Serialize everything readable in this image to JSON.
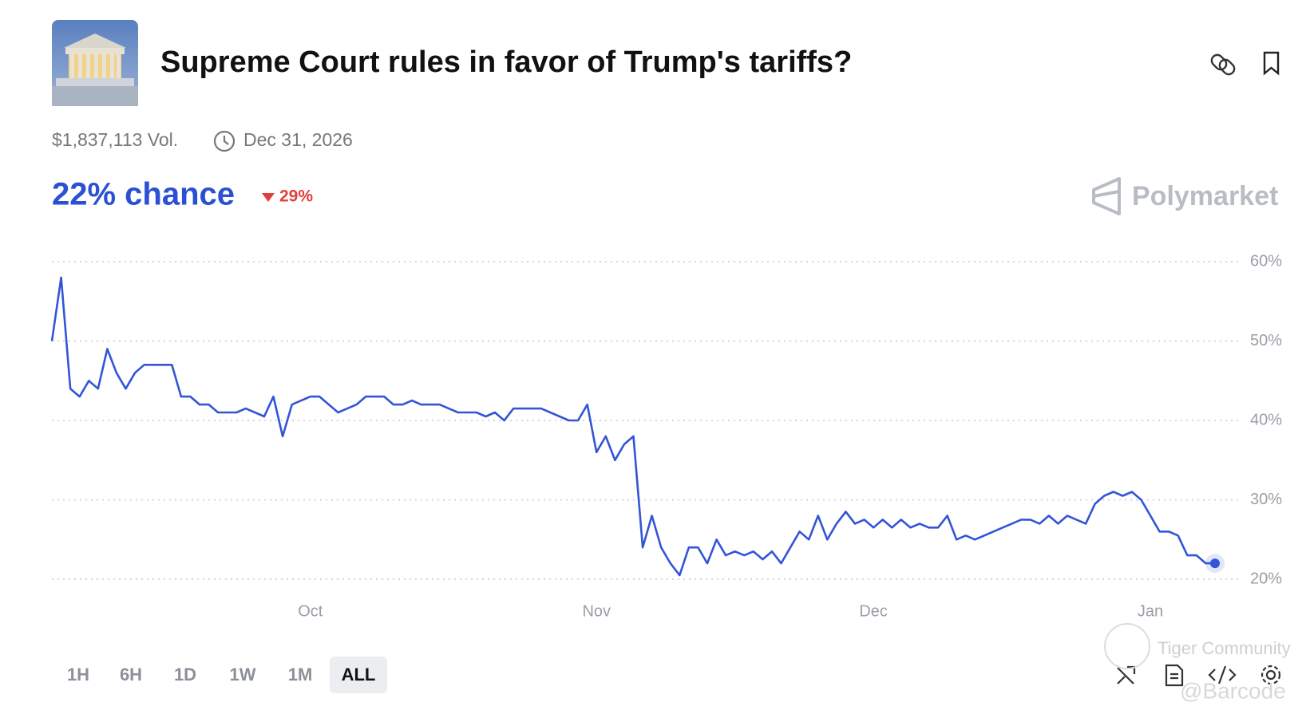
{
  "header": {
    "title": "Supreme Court rules in favor of Trump's tariffs?",
    "volume": "$1,837,113 Vol.",
    "end_date": "Dec 31, 2026"
  },
  "chance": {
    "label": "22% chance",
    "change": "29%"
  },
  "brand": "Polymarket",
  "chart_data": {
    "type": "line",
    "series": [
      {
        "color": "#3355d6",
        "values": [
          50,
          58,
          44,
          43,
          45,
          44,
          49,
          46,
          44,
          46,
          47,
          47,
          47,
          47,
          43,
          43,
          42,
          42,
          41,
          41,
          41,
          41.5,
          41,
          40.5,
          43,
          38,
          42,
          42.5,
          43,
          43,
          42,
          41,
          41.5,
          42,
          43,
          43,
          43,
          42,
          42,
          42.5,
          42,
          42,
          42,
          41.5,
          41,
          41,
          41,
          40.5,
          41,
          40,
          41.5,
          41.5,
          41.5,
          41.5,
          41,
          40.5,
          40,
          40,
          42,
          36,
          38,
          35,
          37,
          38,
          24,
          28,
          24,
          22,
          20.5,
          24,
          24,
          22,
          25,
          23,
          23.5,
          23,
          23.5,
          22.5,
          23.5,
          22,
          24,
          26,
          25,
          28,
          25,
          27,
          28.5,
          27,
          27.5,
          26.5,
          27.5,
          26.5,
          27.5,
          26.5,
          27,
          26.5,
          26.5,
          28,
          25,
          25.5,
          25,
          25.5,
          26,
          26.5,
          27,
          27.5,
          27.5,
          27,
          28,
          27,
          28,
          27.5,
          27,
          29.5,
          30.5,
          31,
          30.5,
          31,
          30,
          28,
          26,
          26,
          25.5,
          23,
          23,
          22,
          22
        ]
      }
    ],
    "xlim": [
      0,
      126
    ],
    "xticks": [
      {
        "value": 28,
        "label": "Oct"
      },
      {
        "value": 59,
        "label": "Nov"
      },
      {
        "value": 89,
        "label": "Dec"
      },
      {
        "value": 119,
        "label": "Jan"
      }
    ],
    "ylim": [
      20,
      60
    ],
    "yticks": [
      {
        "value": 20,
        "label": "20%"
      },
      {
        "value": 30,
        "label": "30%"
      },
      {
        "value": 40,
        "label": "40%"
      },
      {
        "value": 50,
        "label": "50%"
      },
      {
        "value": 60,
        "label": "60%"
      }
    ],
    "grid": true
  },
  "range_buttons": [
    "1H",
    "6H",
    "1D",
    "1W",
    "1M",
    "ALL"
  ],
  "watermark": [
    "Tiger Community",
    "@Barcode"
  ]
}
